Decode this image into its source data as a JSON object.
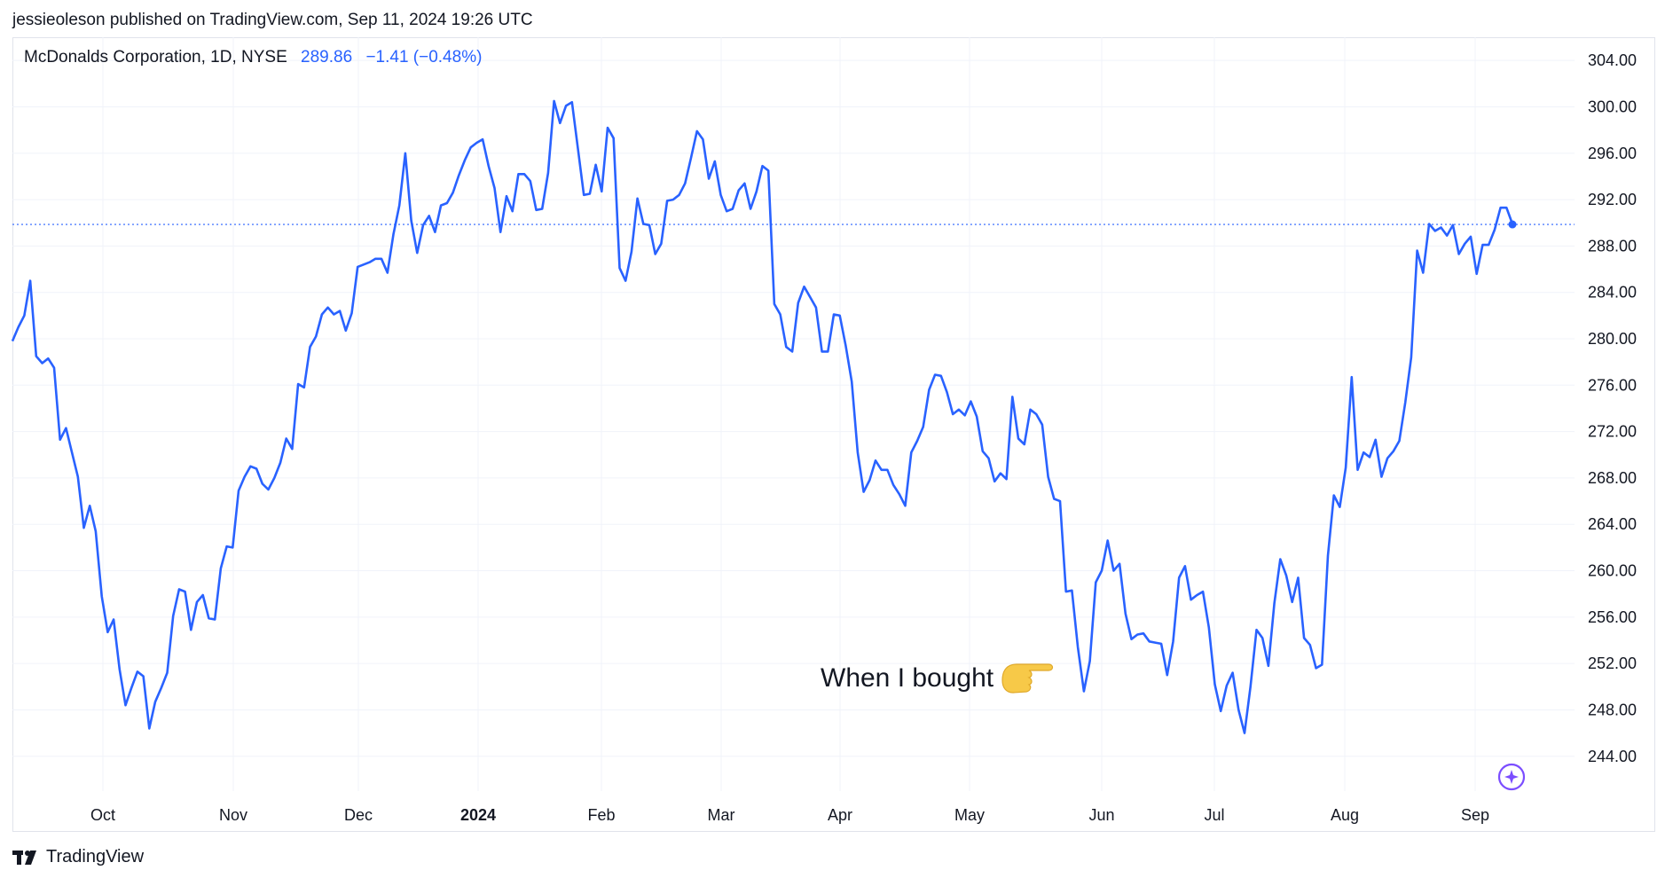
{
  "header": {
    "published_line": "jessieoleson published on TradingView.com, Sep 11, 2024 19:26 UTC"
  },
  "legend": {
    "symbol": "McDonalds Corporation, 1D, NYSE",
    "price": "289.86",
    "change": "−1.41 (−0.48%)"
  },
  "footer": {
    "brand": "TradingView"
  },
  "colors": {
    "line": "#2962ff",
    "grid": "#f0f3fa",
    "price_line": "#2962ff",
    "hand": "#f7c948",
    "sparkle": "#7b4dff"
  },
  "chart_data": {
    "type": "line",
    "series": [
      {
        "values": [
          279.8,
          281.0,
          282.0,
          285.0,
          278.5,
          277.9,
          278.3,
          277.5,
          271.3,
          272.3,
          270.2,
          268.1,
          263.7,
          265.6,
          263.4,
          257.8,
          254.7,
          255.8,
          251.5,
          248.4,
          249.9,
          251.3,
          250.9,
          246.4,
          248.7,
          249.9,
          251.2,
          256.1,
          258.4,
          258.2,
          254.9,
          257.3,
          257.9,
          255.9,
          255.8,
          260.2,
          262.1,
          262.0,
          266.9,
          268.1,
          269.0,
          268.8,
          267.5,
          267.0,
          268.0,
          269.3,
          271.4,
          270.5,
          276.1,
          275.8,
          279.3,
          280.2,
          282.1,
          282.7,
          282.1,
          282.4,
          280.7,
          282.2,
          286.2,
          286.4,
          286.6,
          286.9,
          286.9,
          285.7,
          289.0,
          291.5,
          296.0,
          290.2,
          287.4,
          289.8,
          290.6,
          289.2,
          291.5,
          291.7,
          292.6,
          294.1,
          295.4,
          296.5,
          296.9,
          297.2,
          294.9,
          293.0,
          289.2,
          292.3,
          291.0,
          294.2,
          294.2,
          293.6,
          291.1,
          291.2,
          294.3,
          300.5,
          298.6,
          300.1,
          300.4,
          296.4,
          292.4,
          292.5,
          295.0,
          292.7,
          298.2,
          297.3,
          286.1,
          285.0,
          287.5,
          292.1,
          289.9,
          289.8,
          287.3,
          288.2,
          291.9,
          292.0,
          292.4,
          293.4,
          295.6,
          297.9,
          297.2,
          293.8,
          295.3,
          292.4,
          291.0,
          291.2,
          292.8,
          293.4,
          291.2,
          292.7,
          294.9,
          294.5,
          283.0,
          282.1,
          279.3,
          278.9,
          283.1,
          284.5,
          283.6,
          282.7,
          278.9,
          278.9,
          282.1,
          282.0,
          279.4,
          276.3,
          270.2,
          266.8,
          267.8,
          269.5,
          268.7,
          268.7,
          267.4,
          266.6,
          265.6,
          270.2,
          271.2,
          272.4,
          275.6,
          276.9,
          276.8,
          275.4,
          273.5,
          273.9,
          273.4,
          274.6,
          273.3,
          270.3,
          269.7,
          267.7,
          268.4,
          267.9,
          275.0,
          271.4,
          270.9,
          273.9,
          273.5,
          272.6,
          268.1,
          266.2,
          266.0,
          258.2,
          258.3,
          253.4,
          249.6,
          252.2,
          259.0,
          260.0,
          262.6,
          260.0,
          260.6,
          256.3,
          254.1,
          254.5,
          254.6,
          253.9,
          253.8,
          253.7,
          251.0,
          253.9,
          259.4,
          260.4,
          257.5,
          257.9,
          258.2,
          255.1,
          250.2,
          247.9,
          250.1,
          251.2,
          248.0,
          246.0,
          250.0,
          254.9,
          254.2,
          251.8,
          257.2,
          261.0,
          259.6,
          257.3,
          259.4,
          254.2,
          253.6,
          251.6,
          251.9,
          261.3,
          266.5,
          265.5,
          268.9,
          276.7,
          268.7,
          270.2,
          269.8,
          271.3,
          268.1,
          269.7,
          270.3,
          271.2,
          274.5,
          278.4,
          287.6,
          285.7,
          289.9,
          289.3,
          289.6,
          288.9,
          289.8,
          287.3,
          288.2,
          288.8,
          285.6,
          288.1,
          288.1,
          289.4,
          291.3,
          291.3,
          289.9
        ],
        "start_date": "2023-09-11",
        "end_date": "2024-09-11"
      }
    ],
    "last_value": 289.86,
    "x_tick_labels": [
      "Oct",
      "Nov",
      "Dec",
      "2024",
      "Feb",
      "Mar",
      "Apr",
      "May",
      "Jun",
      "Jul",
      "Aug",
      "Sep"
    ],
    "y_tick_labels": [
      "304.00",
      "300.00",
      "296.00",
      "292.00",
      "288.00",
      "284.00",
      "280.00",
      "276.00",
      "272.00",
      "268.00",
      "264.00",
      "260.00",
      "256.00",
      "252.00",
      "248.00",
      "244.00"
    ],
    "ylim": [
      241,
      306
    ],
    "grid": true,
    "annotation": "When I bought"
  }
}
